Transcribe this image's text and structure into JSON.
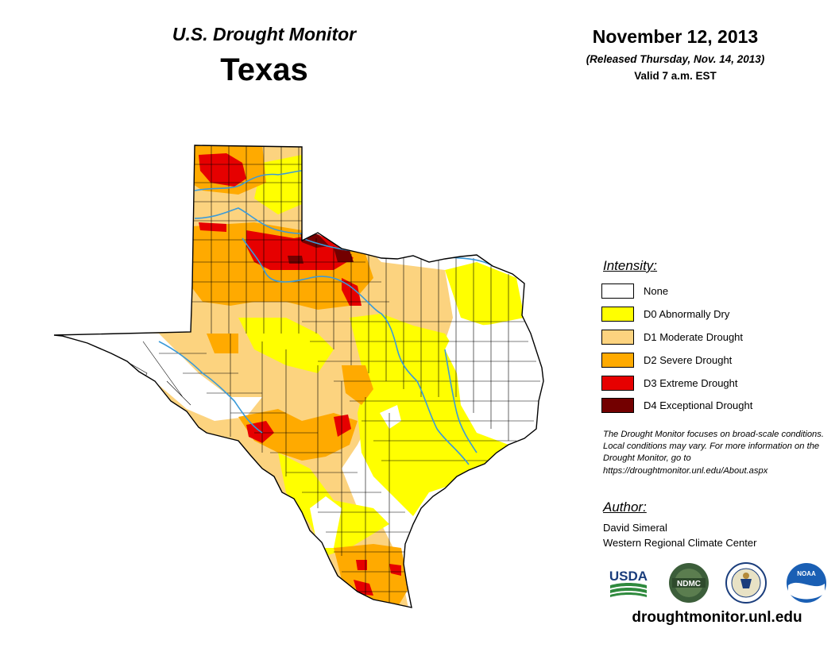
{
  "header": {
    "monitor_title": "U.S. Drought Monitor",
    "state": "Texas",
    "date": "November 12, 2013",
    "released": "(Released Thursday, Nov. 14, 2013)",
    "valid": "Valid 7 a.m. EST"
  },
  "legend": {
    "title": "Intensity:",
    "items": [
      {
        "label": "None",
        "color": "#ffffff"
      },
      {
        "label": "D0 Abnormally Dry",
        "color": "#ffff00"
      },
      {
        "label": "D1 Moderate Drought",
        "color": "#fcd37f"
      },
      {
        "label": "D2 Severe Drought",
        "color": "#ffaa00"
      },
      {
        "label": "D3 Extreme Drought",
        "color": "#e60000"
      },
      {
        "label": "D4 Exceptional Drought",
        "color": "#730000"
      }
    ]
  },
  "note": {
    "text": "The Drought Monitor focuses on broad-scale conditions. Local conditions may vary. For more information on the Drought Monitor, go to https://droughtmonitor.unl.edu/About.aspx"
  },
  "author": {
    "title": "Author:",
    "name": "David Simeral",
    "org": "Western Regional Climate Center"
  },
  "logos": [
    {
      "icon": "usda-logo",
      "text": "USDA"
    },
    {
      "icon": "ndmc-logo",
      "text": "NDMC"
    },
    {
      "icon": "commerce-seal-logo"
    },
    {
      "icon": "noaa-logo",
      "text": "NOAA"
    }
  ],
  "footer": {
    "url": "droughtmonitor.unl.edu"
  },
  "colors": {
    "river": "#3a9ad9",
    "county_lines": "#000000"
  }
}
